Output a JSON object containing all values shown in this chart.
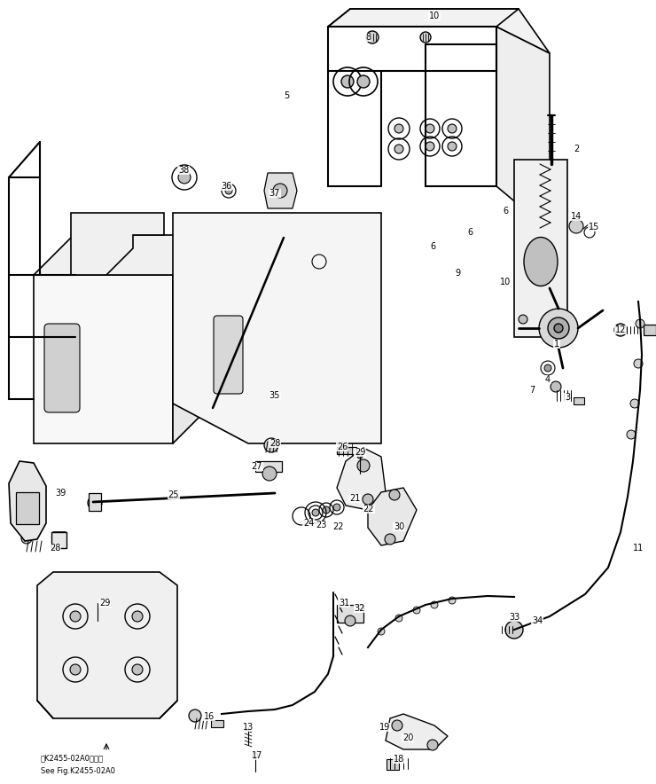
{
  "background_color": "#ffffff",
  "line_color": "#000000",
  "fig_width": 7.4,
  "fig_height": 8.84,
  "dpi": 100,
  "note_line1": "第K2455-02A0図参照",
  "note_line2": "See Fig.K2455-02A0",
  "labels": [
    [
      "10",
      490,
      18
    ],
    [
      "8",
      415,
      42
    ],
    [
      "5",
      323,
      108
    ],
    [
      "38",
      207,
      192
    ],
    [
      "36",
      255,
      210
    ],
    [
      "37",
      310,
      218
    ],
    [
      "2",
      650,
      168
    ],
    [
      "14",
      650,
      244
    ],
    [
      "15",
      670,
      256
    ],
    [
      "6",
      570,
      238
    ],
    [
      "6",
      530,
      262
    ],
    [
      "6",
      488,
      278
    ],
    [
      "9",
      516,
      308
    ],
    [
      "10",
      570,
      318
    ],
    [
      "7",
      600,
      440
    ],
    [
      "1",
      628,
      388
    ],
    [
      "4",
      618,
      428
    ],
    [
      "3",
      640,
      448
    ],
    [
      "12",
      700,
      372
    ],
    [
      "11",
      720,
      618
    ],
    [
      "35",
      310,
      446
    ],
    [
      "39",
      68,
      556
    ],
    [
      "28",
      310,
      500
    ],
    [
      "26",
      386,
      504
    ],
    [
      "29",
      406,
      510
    ],
    [
      "27",
      290,
      526
    ],
    [
      "25",
      196,
      558
    ],
    [
      "21",
      400,
      562
    ],
    [
      "22",
      416,
      574
    ],
    [
      "22",
      382,
      594
    ],
    [
      "24",
      348,
      590
    ],
    [
      "23",
      362,
      592
    ],
    [
      "30",
      450,
      594
    ],
    [
      "28",
      62,
      618
    ],
    [
      "29",
      118,
      680
    ],
    [
      "31",
      388,
      680
    ],
    [
      "32",
      406,
      686
    ],
    [
      "33",
      580,
      696
    ],
    [
      "34",
      606,
      700
    ],
    [
      "16",
      236,
      808
    ],
    [
      "13",
      280,
      820
    ],
    [
      "17",
      290,
      852
    ],
    [
      "19",
      434,
      820
    ],
    [
      "20",
      460,
      832
    ],
    [
      "18",
      450,
      856
    ]
  ]
}
